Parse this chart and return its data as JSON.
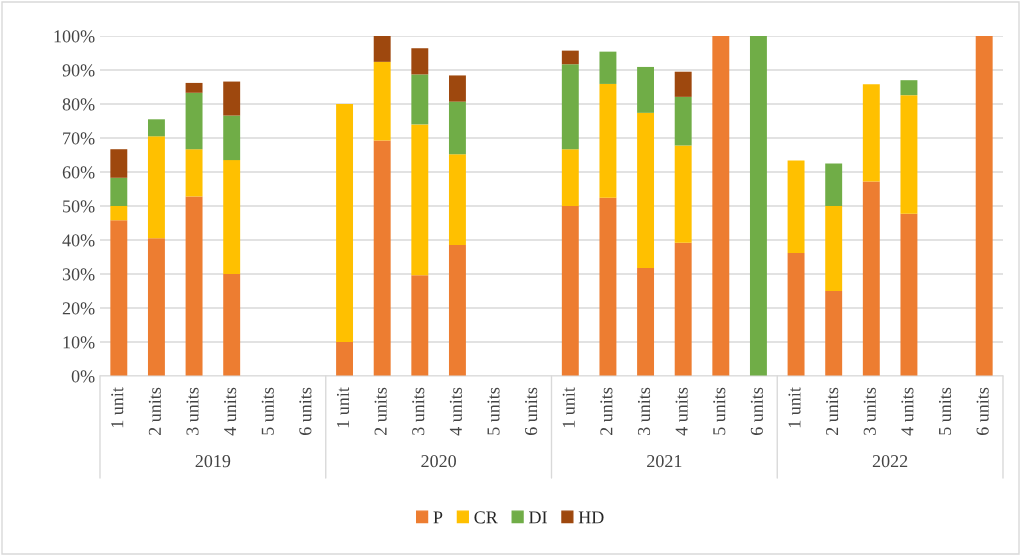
{
  "chart_data": {
    "type": "bar",
    "stacked": true,
    "categories": [
      "1 unit",
      "2 units",
      "3 units",
      "4 units",
      "5 units",
      "6 units",
      "1 unit",
      "2 units",
      "3 units",
      "4 units",
      "5 units",
      "6 units",
      "1 unit",
      "2 units",
      "3 units",
      "4 units",
      "5 units",
      "6 units",
      "1 unit",
      "2 units",
      "3 units",
      "4 units",
      "5 units",
      "6 units"
    ],
    "annotations": [
      "2019",
      "2020",
      "2021",
      "2022"
    ],
    "series": [
      {
        "name": "P",
        "color": "#ed7d31",
        "values": [
          45.8,
          40.5,
          52.8,
          30,
          null,
          null,
          10,
          69.3,
          29.6,
          38.5,
          null,
          null,
          50,
          52.4,
          31.8,
          39.2,
          100,
          null,
          36.2,
          25,
          57.2,
          47.7,
          null,
          100
        ]
      },
      {
        "name": "CR",
        "color": "#ffc000",
        "values": [
          4.2,
          30,
          13.9,
          33.5,
          null,
          null,
          70,
          23.1,
          44.4,
          26.7,
          null,
          null,
          16.7,
          33.5,
          45.6,
          28.6,
          null,
          null,
          27.2,
          25,
          28.6,
          34.9,
          null,
          null
        ]
      },
      {
        "name": "DI",
        "color": "#70ad47",
        "values": [
          8.3,
          5,
          16.6,
          13.1,
          null,
          null,
          null,
          null,
          14.7,
          15.5,
          null,
          null,
          25,
          9.5,
          13.5,
          14.3,
          null,
          100,
          null,
          12.5,
          null,
          4.4,
          null,
          null
        ]
      },
      {
        "name": "HD",
        "color": "#9e480e",
        "values": [
          8.4,
          null,
          2.9,
          10,
          null,
          null,
          null,
          7.6,
          7.7,
          7.7,
          null,
          null,
          4,
          null,
          null,
          7.4,
          null,
          null,
          null,
          null,
          null,
          null,
          null,
          null
        ]
      }
    ],
    "ylim": [
      0,
      100
    ],
    "yticks": [
      {
        "value": 0,
        "label": "0%"
      },
      {
        "value": 10,
        "label": "10%"
      },
      {
        "value": 20,
        "label": "20%"
      },
      {
        "value": 30,
        "label": "30%"
      },
      {
        "value": 40,
        "label": "40%"
      },
      {
        "value": 50,
        "label": "50%"
      },
      {
        "value": 60,
        "label": "60%"
      },
      {
        "value": 70,
        "label": "70%"
      },
      {
        "value": 80,
        "label": "80%"
      },
      {
        "value": 90,
        "label": "90%"
      },
      {
        "value": 100,
        "label": "100%"
      }
    ],
    "grid": "y",
    "legend": "bottom"
  }
}
